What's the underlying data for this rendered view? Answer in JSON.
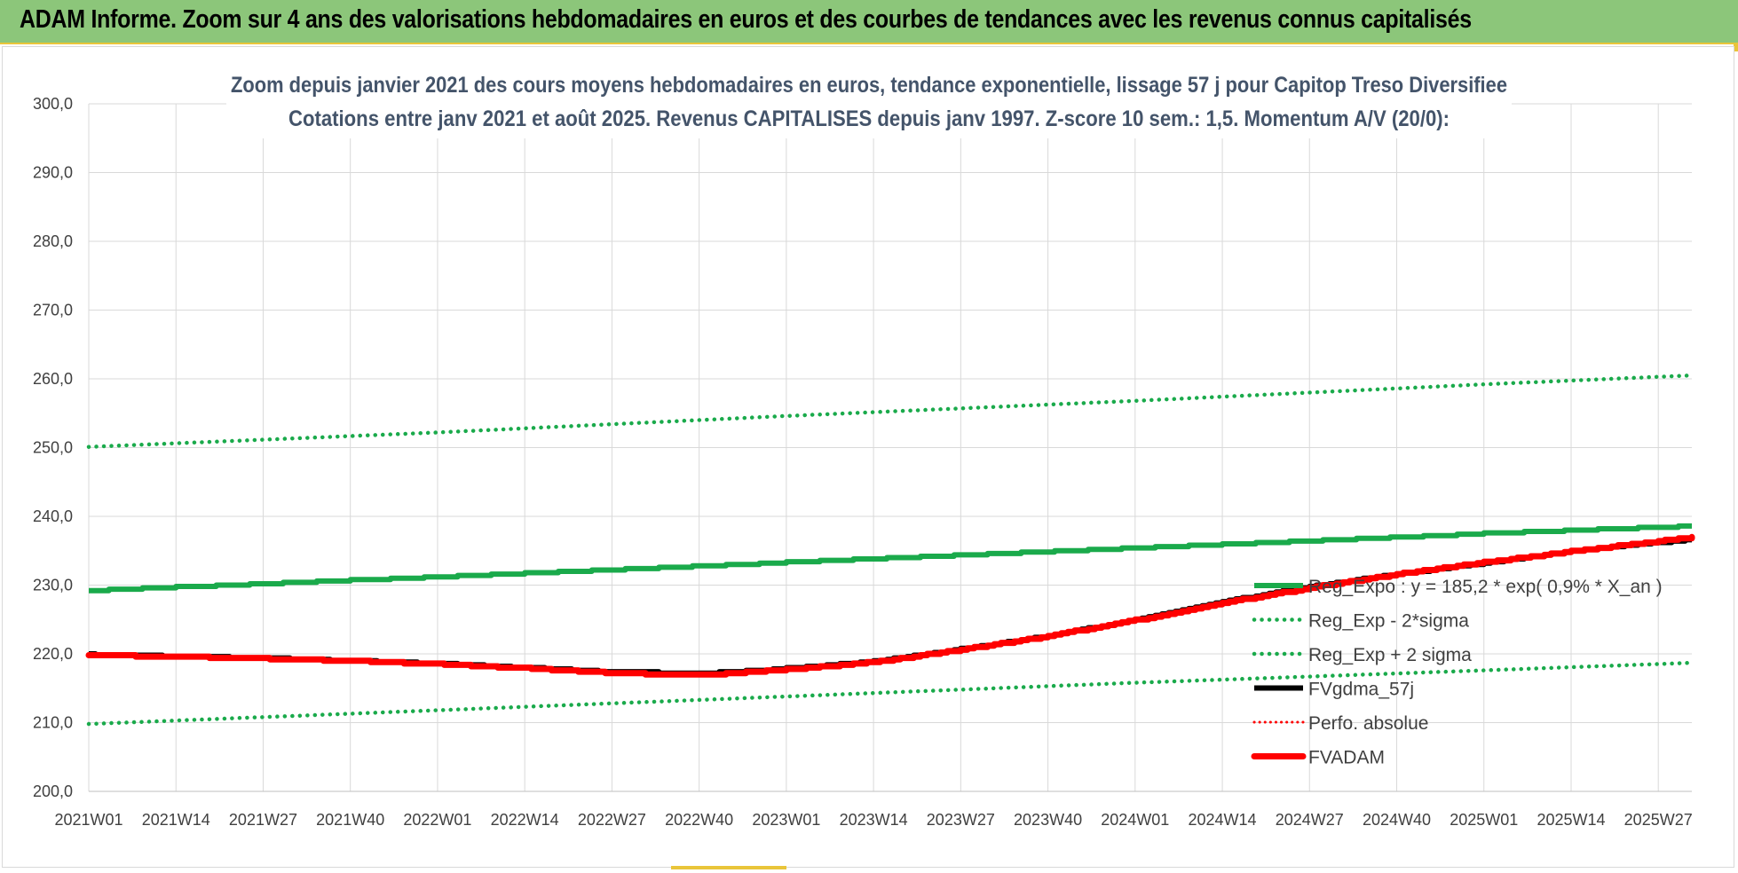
{
  "banner": {
    "title": "ADAM Informe. Zoom sur 4 ans des valorisations hebdomadaires en euros et des courbes de tendances avec les revenus connus capitalisés"
  },
  "colors": {
    "banner_bg": "#8cc67a",
    "accent": "#e9c53a",
    "green": "#1aaa4b",
    "red": "#ff0000",
    "black": "#000000",
    "title_text": "#44546a"
  },
  "chart_data": {
    "type": "line",
    "title_line1": "Zoom depuis janvier 2021 des cours moyens hebdomadaires en euros, tendance exponentielle, lissage 57 j pour Capitop Treso Diversifiee",
    "title_line2": "Cotations entre janv 2021 et août 2025. Revenus CAPITALISES depuis janv 1997. Z-score 10 sem.: 1,5. Momentum A/V (20/0):",
    "xlabel": "",
    "ylabel": "",
    "ylim": [
      200,
      300
    ],
    "y_ticks": [
      "300,0",
      "290,0",
      "280,0",
      "270,0",
      "260,0",
      "250,0",
      "240,0",
      "230,0",
      "220,0",
      "210,0",
      "200,0"
    ],
    "x_range_weeks": [
      0,
      239
    ],
    "x_ticks": [
      {
        "label": "2021W01",
        "week": 0
      },
      {
        "label": "2021W14",
        "week": 13
      },
      {
        "label": "2021W27",
        "week": 26
      },
      {
        "label": "2021W40",
        "week": 39
      },
      {
        "label": "2022W01",
        "week": 52
      },
      {
        "label": "2022W14",
        "week": 65
      },
      {
        "label": "2022W27",
        "week": 78
      },
      {
        "label": "2022W40",
        "week": 91
      },
      {
        "label": "2023W01",
        "week": 104
      },
      {
        "label": "2023W14",
        "week": 117
      },
      {
        "label": "2023W27",
        "week": 130
      },
      {
        "label": "2023W40",
        "week": 143
      },
      {
        "label": "2024W01",
        "week": 156
      },
      {
        "label": "2024W14",
        "week": 169
      },
      {
        "label": "2024W27",
        "week": 182
      },
      {
        "label": "2024W40",
        "week": 195
      },
      {
        "label": "2025W01",
        "week": 208
      },
      {
        "label": "2025W14",
        "week": 221
      },
      {
        "label": "2025W27",
        "week": 234
      }
    ],
    "grid": true,
    "legend_position": "right",
    "series": [
      {
        "name": "Reg_Expo : y = 185,2 * exp( 0,9% *  X_an )",
        "style": "solid",
        "color": "#1aaa4b",
        "points": [
          [
            0,
            229.2
          ],
          [
            52,
            231.2
          ],
          [
            104,
            233.3
          ],
          [
            156,
            235.4
          ],
          [
            208,
            237.5
          ],
          [
            239,
            238.6
          ]
        ]
      },
      {
        "name": "Reg_Exp - 2*sigma",
        "style": "dotted",
        "color": "#1aaa4b",
        "points": [
          [
            0,
            209.8
          ],
          [
            52,
            211.8
          ],
          [
            104,
            213.8
          ],
          [
            156,
            215.8
          ],
          [
            208,
            217.6
          ],
          [
            239,
            218.7
          ]
        ]
      },
      {
        "name": "Reg_Exp + 2 sigma",
        "style": "dotted",
        "color": "#1aaa4b",
        "points": [
          [
            0,
            250.1
          ],
          [
            52,
            252.2
          ],
          [
            104,
            254.6
          ],
          [
            156,
            256.8
          ],
          [
            208,
            259.2
          ],
          [
            239,
            260.5
          ]
        ]
      },
      {
        "name": "FVgdma_57j",
        "style": "solid",
        "color": "#000000",
        "points": [
          [
            0,
            219.9
          ],
          [
            26,
            219.4
          ],
          [
            52,
            218.6
          ],
          [
            78,
            217.4
          ],
          [
            91,
            217.2
          ],
          [
            100,
            217.6
          ],
          [
            104,
            217.9
          ],
          [
            117,
            218.9
          ],
          [
            130,
            220.7
          ],
          [
            143,
            222.6
          ],
          [
            156,
            225.0
          ],
          [
            169,
            227.6
          ],
          [
            182,
            229.8
          ],
          [
            195,
            231.6
          ],
          [
            208,
            233.2
          ],
          [
            221,
            234.9
          ],
          [
            234,
            236.2
          ],
          [
            239,
            236.6
          ]
        ]
      },
      {
        "name": "Perfo. absolue",
        "style": "dotted",
        "color": "#ff0000",
        "points": []
      },
      {
        "name": "FVADAM",
        "style": "solid",
        "color": "#ff0000",
        "points": [
          [
            0,
            219.8
          ],
          [
            13,
            219.6
          ],
          [
            26,
            219.3
          ],
          [
            39,
            219.0
          ],
          [
            52,
            218.5
          ],
          [
            65,
            217.9
          ],
          [
            78,
            217.2
          ],
          [
            91,
            216.9
          ],
          [
            104,
            217.7
          ],
          [
            117,
            218.8
          ],
          [
            130,
            220.6
          ],
          [
            143,
            222.6
          ],
          [
            156,
            224.9
          ],
          [
            169,
            227.4
          ],
          [
            182,
            229.6
          ],
          [
            195,
            231.6
          ],
          [
            208,
            233.3
          ],
          [
            221,
            234.9
          ],
          [
            234,
            236.4
          ],
          [
            239,
            236.9
          ]
        ]
      }
    ]
  }
}
